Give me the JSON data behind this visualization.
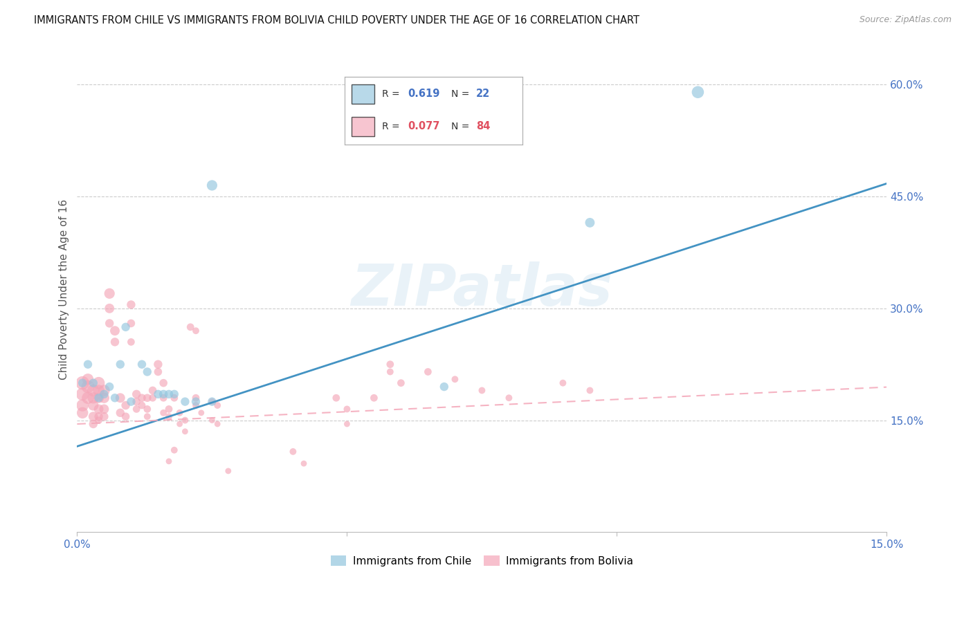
{
  "title": "IMMIGRANTS FROM CHILE VS IMMIGRANTS FROM BOLIVIA CHILD POVERTY UNDER THE AGE OF 16 CORRELATION CHART",
  "source": "Source: ZipAtlas.com",
  "ylabel": "Child Poverty Under the Age of 16",
  "xlim": [
    0,
    0.15
  ],
  "ylim": [
    0,
    0.65
  ],
  "y_ticks": [
    0.15,
    0.3,
    0.45,
    0.6
  ],
  "y_tick_labels": [
    "15.0%",
    "30.0%",
    "45.0%",
    "60.0%"
  ],
  "x_ticks": [
    0.0,
    0.05,
    0.1,
    0.15
  ],
  "x_tick_labels": [
    "0.0%",
    "",
    "",
    "15.0%"
  ],
  "watermark": "ZIPatlas",
  "chile_color": "#92c5de",
  "bolivia_color": "#f4a6b8",
  "trendline_chile_color": "#4393c3",
  "trendline_bolivia_color": "#f4a6b8",
  "trendline_chile_intercept": 0.115,
  "trendline_chile_slope": 2.35,
  "trendline_bolivia_intercept": 0.145,
  "trendline_bolivia_slope": 0.33,
  "chile_points": [
    [
      0.001,
      0.2
    ],
    [
      0.002,
      0.225
    ],
    [
      0.003,
      0.2
    ],
    [
      0.004,
      0.18
    ],
    [
      0.005,
      0.185
    ],
    [
      0.006,
      0.195
    ],
    [
      0.007,
      0.18
    ],
    [
      0.008,
      0.225
    ],
    [
      0.009,
      0.275
    ],
    [
      0.01,
      0.175
    ],
    [
      0.012,
      0.225
    ],
    [
      0.013,
      0.215
    ],
    [
      0.015,
      0.185
    ],
    [
      0.016,
      0.185
    ],
    [
      0.017,
      0.185
    ],
    [
      0.018,
      0.185
    ],
    [
      0.02,
      0.175
    ],
    [
      0.022,
      0.175
    ],
    [
      0.025,
      0.175
    ],
    [
      0.025,
      0.465
    ],
    [
      0.068,
      0.195
    ],
    [
      0.095,
      0.415
    ],
    [
      0.115,
      0.59
    ]
  ],
  "chile_sizes": [
    80,
    80,
    80,
    80,
    80,
    80,
    80,
    80,
    80,
    80,
    80,
    80,
    80,
    80,
    80,
    80,
    80,
    80,
    80,
    120,
    80,
    100,
    160
  ],
  "bolivia_points": [
    [
      0.001,
      0.2
    ],
    [
      0.001,
      0.185
    ],
    [
      0.001,
      0.17
    ],
    [
      0.001,
      0.16
    ],
    [
      0.002,
      0.195
    ],
    [
      0.002,
      0.18
    ],
    [
      0.002,
      0.205
    ],
    [
      0.003,
      0.19
    ],
    [
      0.003,
      0.18
    ],
    [
      0.003,
      0.17
    ],
    [
      0.003,
      0.155
    ],
    [
      0.003,
      0.145
    ],
    [
      0.004,
      0.2
    ],
    [
      0.004,
      0.19
    ],
    [
      0.004,
      0.18
    ],
    [
      0.004,
      0.165
    ],
    [
      0.004,
      0.155
    ],
    [
      0.004,
      0.15
    ],
    [
      0.005,
      0.19
    ],
    [
      0.005,
      0.18
    ],
    [
      0.005,
      0.165
    ],
    [
      0.005,
      0.155
    ],
    [
      0.006,
      0.32
    ],
    [
      0.006,
      0.3
    ],
    [
      0.006,
      0.28
    ],
    [
      0.007,
      0.27
    ],
    [
      0.007,
      0.255
    ],
    [
      0.008,
      0.18
    ],
    [
      0.008,
      0.16
    ],
    [
      0.009,
      0.17
    ],
    [
      0.009,
      0.155
    ],
    [
      0.01,
      0.305
    ],
    [
      0.01,
      0.28
    ],
    [
      0.01,
      0.255
    ],
    [
      0.011,
      0.185
    ],
    [
      0.011,
      0.175
    ],
    [
      0.011,
      0.165
    ],
    [
      0.012,
      0.18
    ],
    [
      0.012,
      0.17
    ],
    [
      0.013,
      0.18
    ],
    [
      0.013,
      0.165
    ],
    [
      0.013,
      0.155
    ],
    [
      0.014,
      0.19
    ],
    [
      0.014,
      0.18
    ],
    [
      0.015,
      0.225
    ],
    [
      0.015,
      0.215
    ],
    [
      0.016,
      0.2
    ],
    [
      0.016,
      0.18
    ],
    [
      0.016,
      0.16
    ],
    [
      0.017,
      0.165
    ],
    [
      0.017,
      0.155
    ],
    [
      0.017,
      0.095
    ],
    [
      0.018,
      0.11
    ],
    [
      0.018,
      0.18
    ],
    [
      0.019,
      0.16
    ],
    [
      0.019,
      0.145
    ],
    [
      0.02,
      0.15
    ],
    [
      0.02,
      0.135
    ],
    [
      0.021,
      0.275
    ],
    [
      0.022,
      0.27
    ],
    [
      0.022,
      0.18
    ],
    [
      0.022,
      0.17
    ],
    [
      0.023,
      0.16
    ],
    [
      0.025,
      0.175
    ],
    [
      0.025,
      0.15
    ],
    [
      0.026,
      0.17
    ],
    [
      0.026,
      0.145
    ],
    [
      0.028,
      0.082
    ],
    [
      0.04,
      0.108
    ],
    [
      0.042,
      0.092
    ],
    [
      0.048,
      0.18
    ],
    [
      0.05,
      0.165
    ],
    [
      0.05,
      0.145
    ],
    [
      0.055,
      0.18
    ],
    [
      0.058,
      0.225
    ],
    [
      0.058,
      0.215
    ],
    [
      0.06,
      0.2
    ],
    [
      0.065,
      0.215
    ],
    [
      0.07,
      0.205
    ],
    [
      0.075,
      0.19
    ],
    [
      0.08,
      0.18
    ],
    [
      0.09,
      0.2
    ],
    [
      0.095,
      0.19
    ]
  ],
  "bolivia_sizes": [
    200,
    180,
    160,
    140,
    180,
    160,
    140,
    160,
    140,
    120,
    100,
    80,
    160,
    140,
    120,
    100,
    80,
    60,
    140,
    120,
    100,
    80,
    120,
    100,
    80,
    100,
    80,
    100,
    80,
    80,
    70,
    80,
    70,
    60,
    80,
    70,
    60,
    70,
    60,
    70,
    60,
    50,
    70,
    60,
    80,
    70,
    70,
    60,
    50,
    60,
    50,
    40,
    50,
    60,
    50,
    40,
    50,
    40,
    60,
    50,
    60,
    50,
    40,
    50,
    40,
    50,
    40,
    40,
    50,
    40,
    60,
    50,
    40,
    60,
    60,
    50,
    60,
    60,
    50,
    50,
    50,
    50,
    50
  ]
}
